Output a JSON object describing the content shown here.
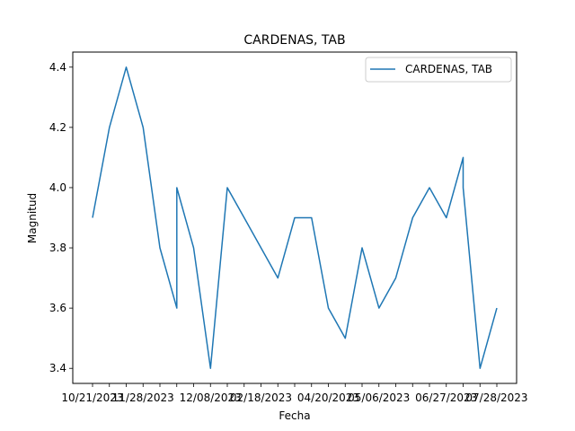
{
  "chart_data": {
    "type": "line",
    "title": "CARDENAS, TAB",
    "xlabel": "Fecha",
    "ylabel": "Magnitud",
    "ylim": [
      3.35,
      4.45
    ],
    "yticks": [
      3.4,
      3.6,
      3.8,
      4.0,
      4.2,
      4.4
    ],
    "ytick_labels": [
      "3.4",
      "3.6",
      "3.8",
      "4.0",
      "4.2",
      "4.4"
    ],
    "x_tick_labels_visible": [
      "10/21/2023",
      "11/28/2023",
      "12/08/2023",
      "02/18/2023",
      "04/20/2023",
      "05/06/2023",
      "06/27/2023",
      "07/28/2023"
    ],
    "legend": {
      "position": "upper right",
      "entries": [
        "CARDENAS, TAB"
      ]
    },
    "grid": false,
    "color": "#1f77b4",
    "series": [
      {
        "name": "CARDENAS, TAB",
        "points": [
          {
            "i": 0,
            "y": 3.9
          },
          {
            "i": 1,
            "y": 4.2
          },
          {
            "i": 2,
            "y": 4.4
          },
          {
            "i": 3,
            "y": 4.2
          },
          {
            "i": 4,
            "y": 3.8
          },
          {
            "i": 5,
            "y": 3.6
          },
          {
            "i": 5,
            "y": 4.0
          },
          {
            "i": 6,
            "y": 3.8
          },
          {
            "i": 7,
            "y": 3.4
          },
          {
            "i": 8,
            "y": 4.0
          },
          {
            "i": 9,
            "y": 3.9
          },
          {
            "i": 10,
            "y": 3.8
          },
          {
            "i": 11,
            "y": 3.7
          },
          {
            "i": 12,
            "y": 3.9
          },
          {
            "i": 13,
            "y": 3.9
          },
          {
            "i": 14,
            "y": 3.6
          },
          {
            "i": 15,
            "y": 3.5
          },
          {
            "i": 16,
            "y": 3.8
          },
          {
            "i": 17,
            "y": 3.6
          },
          {
            "i": 18,
            "y": 3.7
          },
          {
            "i": 19,
            "y": 3.9
          },
          {
            "i": 20,
            "y": 4.0
          },
          {
            "i": 21,
            "y": 3.9
          },
          {
            "i": 22,
            "y": 4.1
          },
          {
            "i": 22,
            "y": 4.0
          },
          {
            "i": 23,
            "y": 3.4
          },
          {
            "i": 24,
            "y": 3.6
          }
        ]
      }
    ]
  }
}
